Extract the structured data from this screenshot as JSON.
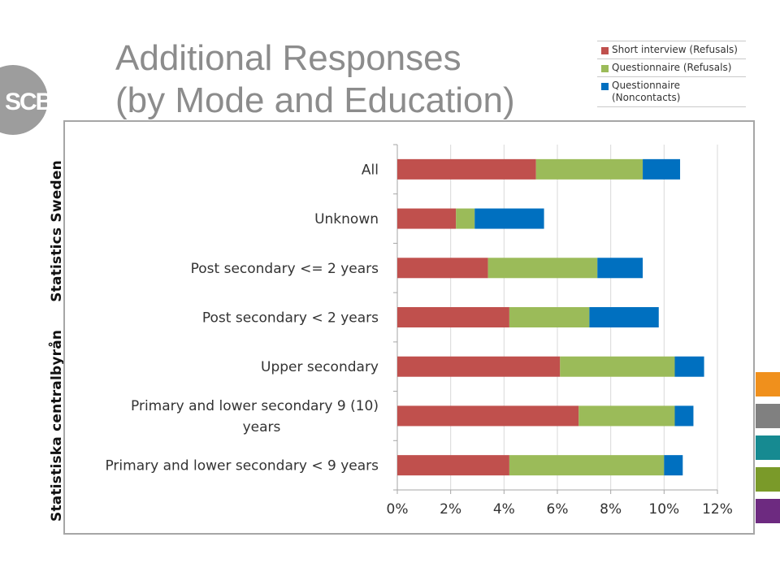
{
  "brand": {
    "logo_text": "SCB",
    "logo_color": "#9d9d9d",
    "side_text_1": "Statistiska centralbyrån",
    "side_text_2": "Statistics Sweden"
  },
  "title": {
    "line1": "Additional Responses",
    "line2": "(by Mode and Education)"
  },
  "legend": [
    {
      "label": "Short interview (Refusals)",
      "color": "#c0504d"
    },
    {
      "label": "Questionnaire (Refusals)",
      "color": "#9bbb59"
    },
    {
      "label": "Questionnaire (Noncontacts)",
      "color": "#0070c0"
    }
  ],
  "side_tabs": [
    {
      "color": "#f0901c"
    },
    {
      "color": "#808080"
    },
    {
      "color": "#168a91"
    },
    {
      "color": "#7a9a29"
    },
    {
      "color": "#6d2a80"
    }
  ],
  "chart_data": {
    "type": "bar",
    "orientation": "horizontal",
    "stacked": true,
    "categories": [
      "All",
      "Unknown",
      "Post secondary <= 2 years",
      "Post secondary < 2 years",
      "Upper secondary",
      "Primary and lower secondary 9 (10) years",
      "Primary and lower secondary < 9 years"
    ],
    "series": [
      {
        "name": "Short interview (Refusals)",
        "color": "#c0504d",
        "values": [
          5.2,
          2.2,
          3.4,
          4.2,
          6.1,
          6.8,
          4.2
        ]
      },
      {
        "name": "Questionnaire (Refusals)",
        "color": "#9bbb59",
        "values": [
          4.0,
          0.7,
          4.1,
          3.0,
          4.3,
          3.6,
          5.8
        ]
      },
      {
        "name": "Questionnaire (Noncontacts)",
        "color": "#0070c0",
        "values": [
          1.4,
          2.6,
          1.7,
          2.6,
          1.1,
          0.7,
          0.7
        ]
      }
    ],
    "xlim": [
      0,
      12
    ],
    "xticks": [
      "0%",
      "2%",
      "4%",
      "6%",
      "8%",
      "10%",
      "12%"
    ],
    "grid": true,
    "legend_position": "top-right"
  }
}
